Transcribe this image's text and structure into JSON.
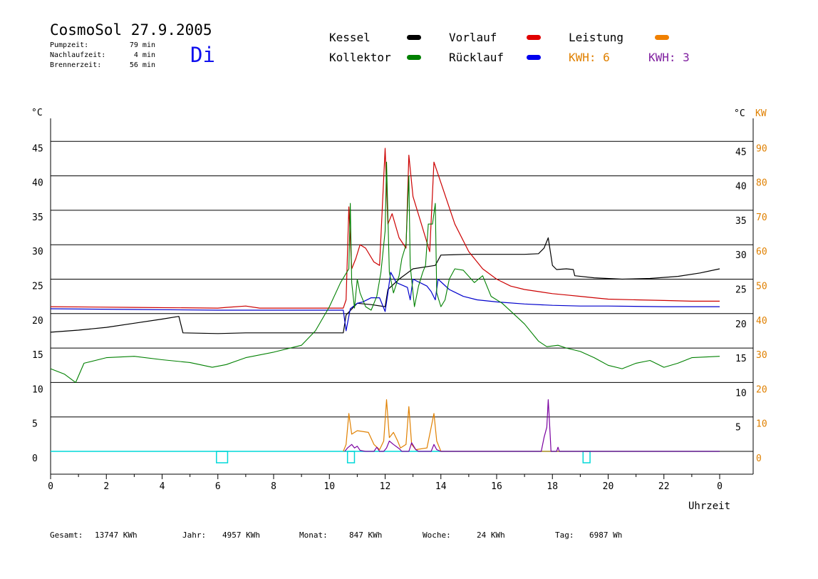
{
  "header": {
    "title": "CosmoSol 27.9.2005",
    "day": "Di",
    "pump_label": "Pumpzeit:",
    "pump_value": "79 min",
    "nach_label": "Nachlaufzeit:",
    "nach_value": "4 min",
    "brenner_label": "Brennerzeit:",
    "brenner_value": "56 min"
  },
  "legend": {
    "kessel": "Kessel",
    "kollektor": "Kollektor",
    "vorlauf": "Vorlauf",
    "ruecklauf": "Rücklauf",
    "leistung": "Leistung",
    "kwh_orange": "KWH: 6",
    "kwh_purple": "KWH: 3"
  },
  "colors": {
    "kessel": "#000000",
    "kollektor": "#008000",
    "vorlauf": "#cc0000",
    "ruecklauf": "#0000cc",
    "leistung": "#e08000",
    "purple": "#7a00a0",
    "cyan": "#00d8d8",
    "kwh_orange_text": "#e08000",
    "kwh_purple_text": "#8020a0",
    "kw_axis": "#e08000",
    "swatch_leistung": "#f08000"
  },
  "footer": {
    "gesamt_label": "Gesamt:",
    "gesamt_value": "13747 KWh",
    "jahr_label": "Jahr:",
    "jahr_value": "4957 KWh",
    "monat_label": "Monat:",
    "monat_value": "847 KWh",
    "woche_label": "Woche:",
    "woche_value": "24 KWh",
    "tag_label": "Tag:",
    "tag_value": "6987 Wh"
  },
  "chart_data": {
    "type": "line",
    "xlabel": "Uhrzeit",
    "ylabel_left": "°C",
    "ylabel_right": [
      "°C",
      "KW"
    ],
    "x_ticks": [
      "0",
      "2",
      "4",
      "6",
      "8",
      "10",
      "12",
      "14",
      "16",
      "18",
      "20",
      "22",
      "0"
    ],
    "xlim": [
      0,
      24
    ],
    "ylim": [
      -3.3,
      47
    ],
    "y_ticks_left": [
      "0",
      "5",
      "10",
      "15",
      "20",
      "25",
      "30",
      "35",
      "40",
      "45"
    ],
    "y_ticks_right_temp": [
      "5",
      "10",
      "15",
      "20",
      "25",
      "30",
      "35",
      "40",
      "45"
    ],
    "y_ticks_right_kw": [
      "0",
      "10",
      "20",
      "30",
      "40",
      "50",
      "60",
      "70",
      "80",
      "90"
    ],
    "grid": true,
    "series": [
      {
        "name": "Kessel",
        "key": "kessel",
        "axis": "temp",
        "points": [
          [
            0,
            17.3
          ],
          [
            1,
            17.6
          ],
          [
            2,
            18
          ],
          [
            3,
            18.6
          ],
          [
            4,
            19.2
          ],
          [
            4.6,
            19.6
          ],
          [
            4.75,
            17.2
          ],
          [
            6,
            17.1
          ],
          [
            7,
            17.2
          ],
          [
            8,
            17.2
          ],
          [
            9,
            17.2
          ],
          [
            10.5,
            17.2
          ],
          [
            10.6,
            19.8
          ],
          [
            11,
            21.5
          ],
          [
            11.5,
            21.3
          ],
          [
            12,
            21
          ],
          [
            12.1,
            23.5
          ],
          [
            12.5,
            25
          ],
          [
            13,
            26.5
          ],
          [
            13.8,
            27
          ],
          [
            14,
            28.5
          ],
          [
            15,
            28.6
          ],
          [
            16,
            28.6
          ],
          [
            17,
            28.6
          ],
          [
            17.5,
            28.7
          ],
          [
            17.7,
            29.5
          ],
          [
            17.85,
            31
          ],
          [
            18,
            27
          ],
          [
            18.15,
            26.4
          ],
          [
            18.5,
            26.5
          ],
          [
            18.75,
            26.4
          ],
          [
            18.8,
            25.5
          ],
          [
            19.5,
            25.2
          ],
          [
            20.5,
            25
          ],
          [
            21.5,
            25.1
          ],
          [
            22.5,
            25.4
          ],
          [
            23.3,
            25.9
          ],
          [
            24,
            26.5
          ]
        ]
      },
      {
        "name": "Kollektor",
        "key": "kollektor",
        "axis": "temp",
        "points": [
          [
            0,
            12
          ],
          [
            0.5,
            11.2
          ],
          [
            0.9,
            10
          ],
          [
            1.2,
            12.8
          ],
          [
            2,
            13.6
          ],
          [
            3,
            13.8
          ],
          [
            4,
            13.3
          ],
          [
            5,
            12.9
          ],
          [
            5.8,
            12.2
          ],
          [
            6.3,
            12.6
          ],
          [
            7,
            13.6
          ],
          [
            8,
            14.4
          ],
          [
            9,
            15.4
          ],
          [
            9.5,
            17.5
          ],
          [
            10,
            21
          ],
          [
            10.4,
            24.5
          ],
          [
            10.7,
            26.5
          ],
          [
            10.75,
            36
          ],
          [
            10.8,
            24.5
          ],
          [
            10.9,
            20.8
          ],
          [
            11,
            25
          ],
          [
            11.1,
            23
          ],
          [
            11.3,
            21
          ],
          [
            11.5,
            20.5
          ],
          [
            11.7,
            22.5
          ],
          [
            11.85,
            26
          ],
          [
            12,
            32
          ],
          [
            12.05,
            42
          ],
          [
            12.15,
            26
          ],
          [
            12.3,
            23
          ],
          [
            12.5,
            25.5
          ],
          [
            12.6,
            28
          ],
          [
            12.75,
            30
          ],
          [
            12.85,
            40
          ],
          [
            12.9,
            27
          ],
          [
            13.05,
            21
          ],
          [
            13.2,
            24
          ],
          [
            13.35,
            26
          ],
          [
            13.45,
            27
          ],
          [
            13.55,
            33
          ],
          [
            13.7,
            33
          ],
          [
            13.8,
            36
          ],
          [
            13.85,
            23
          ],
          [
            14.0,
            21
          ],
          [
            14.15,
            22
          ],
          [
            14.3,
            25
          ],
          [
            14.5,
            26.5
          ],
          [
            14.8,
            26.3
          ],
          [
            15.2,
            24.5
          ],
          [
            15.5,
            25.5
          ],
          [
            15.8,
            22.5
          ],
          [
            16.2,
            21.5
          ],
          [
            16.6,
            20
          ],
          [
            17,
            18.5
          ],
          [
            17.5,
            16
          ],
          [
            17.8,
            15.2
          ],
          [
            18.2,
            15.4
          ],
          [
            18.5,
            15
          ],
          [
            19,
            14.5
          ],
          [
            19.5,
            13.6
          ],
          [
            20,
            12.5
          ],
          [
            20.5,
            12
          ],
          [
            21,
            12.8
          ],
          [
            21.5,
            13.2
          ],
          [
            22,
            12.2
          ],
          [
            22.5,
            12.8
          ],
          [
            23,
            13.6
          ],
          [
            24,
            13.8
          ]
        ]
      },
      {
        "name": "Vorlauf",
        "key": "vorlauf",
        "axis": "temp",
        "points": [
          [
            0,
            21
          ],
          [
            3,
            20.9
          ],
          [
            6,
            20.8
          ],
          [
            6.3,
            20.9
          ],
          [
            7,
            21.1
          ],
          [
            7.5,
            20.8
          ],
          [
            9,
            20.8
          ],
          [
            10.5,
            20.8
          ],
          [
            10.6,
            22
          ],
          [
            10.7,
            35.5
          ],
          [
            10.8,
            26.5
          ],
          [
            10.95,
            28
          ],
          [
            11.1,
            30
          ],
          [
            11.3,
            29.5
          ],
          [
            11.6,
            27.5
          ],
          [
            11.8,
            27
          ],
          [
            12.0,
            44
          ],
          [
            12.1,
            33
          ],
          [
            12.25,
            34.5
          ],
          [
            12.5,
            31
          ],
          [
            12.75,
            29.5
          ],
          [
            12.85,
            43
          ],
          [
            13.0,
            37
          ],
          [
            13.3,
            33
          ],
          [
            13.6,
            29
          ],
          [
            13.75,
            42
          ],
          [
            14.0,
            39
          ],
          [
            14.5,
            33
          ],
          [
            15,
            29
          ],
          [
            15.5,
            26.5
          ],
          [
            16,
            25
          ],
          [
            16.5,
            24
          ],
          [
            17,
            23.5
          ],
          [
            17.5,
            23.2
          ],
          [
            18,
            22.9
          ],
          [
            18.5,
            22.7
          ],
          [
            19,
            22.5
          ],
          [
            19.5,
            22.3
          ],
          [
            20,
            22.1
          ],
          [
            21,
            22
          ],
          [
            22,
            21.9
          ],
          [
            23,
            21.8
          ],
          [
            24,
            21.8
          ]
        ]
      },
      {
        "name": "Rücklauf",
        "key": "ruecklauf",
        "axis": "temp",
        "points": [
          [
            0,
            20.7
          ],
          [
            3,
            20.6
          ],
          [
            6,
            20.5
          ],
          [
            8,
            20.5
          ],
          [
            10.5,
            20.5
          ],
          [
            10.6,
            17.5
          ],
          [
            10.75,
            20.7
          ],
          [
            11,
            21.5
          ],
          [
            11.2,
            21.7
          ],
          [
            11.5,
            22.3
          ],
          [
            11.8,
            22.3
          ],
          [
            12.0,
            20.3
          ],
          [
            12.1,
            23
          ],
          [
            12.2,
            26
          ],
          [
            12.4,
            24.5
          ],
          [
            12.8,
            23.8
          ],
          [
            12.9,
            22
          ],
          [
            13.0,
            25
          ],
          [
            13.5,
            24
          ],
          [
            13.65,
            23.2
          ],
          [
            13.8,
            22
          ],
          [
            13.9,
            25
          ],
          [
            14.3,
            23.5
          ],
          [
            14.8,
            22.5
          ],
          [
            15.3,
            22
          ],
          [
            16,
            21.7
          ],
          [
            17,
            21.4
          ],
          [
            18,
            21.2
          ],
          [
            19,
            21.1
          ],
          [
            20,
            21.1
          ],
          [
            22,
            21
          ],
          [
            24,
            21
          ]
        ]
      },
      {
        "name": "Leistung",
        "key": "leistung",
        "axis": "kw",
        "points": [
          [
            10.5,
            0
          ],
          [
            10.6,
            2
          ],
          [
            10.7,
            11
          ],
          [
            10.8,
            5
          ],
          [
            11.0,
            6
          ],
          [
            11.4,
            5.5
          ],
          [
            11.6,
            2
          ],
          [
            11.8,
            0.5
          ],
          [
            11.95,
            3
          ],
          [
            12.05,
            15
          ],
          [
            12.15,
            4
          ],
          [
            12.3,
            5.5
          ],
          [
            12.45,
            3
          ],
          [
            12.55,
            1
          ],
          [
            12.75,
            2
          ],
          [
            12.85,
            13
          ],
          [
            12.95,
            2
          ],
          [
            13.1,
            0.5
          ],
          [
            13.5,
            1
          ],
          [
            13.65,
            7
          ],
          [
            13.75,
            11
          ],
          [
            13.85,
            3
          ],
          [
            14.0,
            0
          ],
          [
            24,
            0
          ]
        ]
      },
      {
        "name": "Purple",
        "key": "purple",
        "axis": "kw",
        "points": [
          [
            10.55,
            0
          ],
          [
            10.65,
            1
          ],
          [
            10.8,
            2
          ],
          [
            10.9,
            1
          ],
          [
            11.0,
            1.5
          ],
          [
            11.1,
            0.3
          ],
          [
            11.3,
            0
          ],
          [
            11.6,
            0
          ],
          [
            11.7,
            1.2
          ],
          [
            11.8,
            0
          ],
          [
            11.95,
            0
          ],
          [
            12.05,
            1
          ],
          [
            12.15,
            3
          ],
          [
            12.3,
            2
          ],
          [
            12.5,
            0.8
          ],
          [
            12.6,
            0
          ],
          [
            12.85,
            0
          ],
          [
            12.95,
            2.5
          ],
          [
            13.1,
            0.5
          ],
          [
            13.2,
            0
          ],
          [
            13.65,
            0
          ],
          [
            13.75,
            2
          ],
          [
            13.85,
            0.5
          ],
          [
            14.0,
            0
          ],
          [
            17.6,
            0
          ],
          [
            17.7,
            4
          ],
          [
            17.8,
            7
          ],
          [
            17.85,
            15
          ],
          [
            17.9,
            8
          ],
          [
            17.95,
            0
          ],
          [
            18.15,
            0
          ],
          [
            18.2,
            1.2
          ],
          [
            18.25,
            0
          ],
          [
            24,
            0
          ]
        ]
      }
    ],
    "pulses": [
      [
        5.95,
        6.35
      ],
      [
        10.65,
        10.9
      ],
      [
        19.1,
        19.35
      ]
    ]
  }
}
